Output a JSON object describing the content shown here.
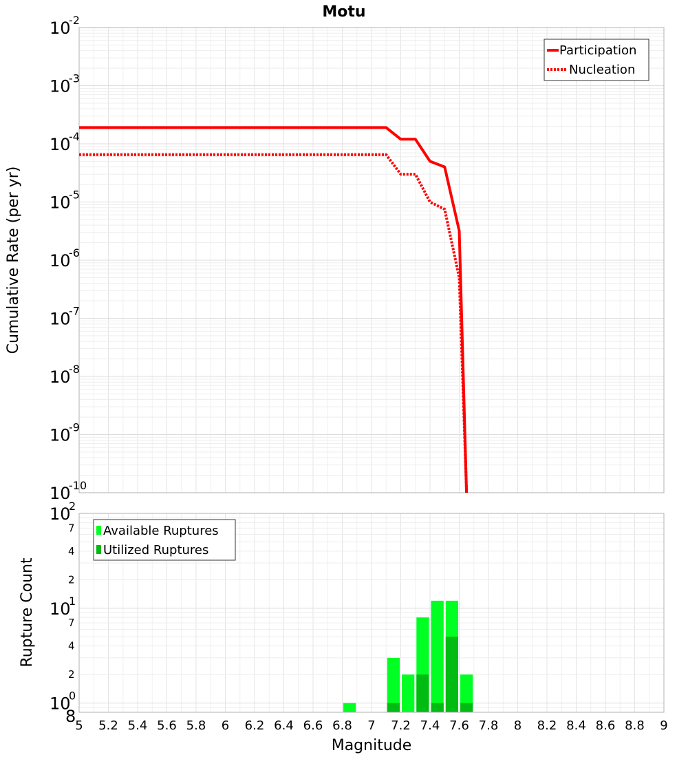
{
  "chart_data": [
    {
      "type": "line",
      "title": "Motu",
      "xlabel": "Magnitude",
      "ylabel": "Cumulative Rate (per yr)",
      "xlim": [
        5,
        9
      ],
      "ylim": [
        1e-10,
        0.01
      ],
      "yscale": "log",
      "xticks": [
        "5",
        "5.2",
        "5.4",
        "5.6",
        "5.8",
        "6",
        "6.2",
        "6.4",
        "6.6",
        "6.8",
        "7",
        "7.2",
        "7.4",
        "7.6",
        "7.8",
        "8",
        "8.2",
        "8.4",
        "8.6",
        "8.8",
        "9"
      ],
      "ytick_labels": [
        {
          "base": "10",
          "exp": "-2",
          "value": 0.01
        },
        {
          "base": "10",
          "exp": "-3",
          "value": 0.001
        },
        {
          "base": "10",
          "exp": "-4",
          "value": 0.0001
        },
        {
          "base": "10",
          "exp": "-5",
          "value": 1e-05
        },
        {
          "base": "10",
          "exp": "-6",
          "value": 1e-06
        },
        {
          "base": "10",
          "exp": "-7",
          "value": 1e-07
        },
        {
          "base": "10",
          "exp": "-8",
          "value": 1e-08
        },
        {
          "base": "10",
          "exp": "-9",
          "value": 1e-09
        },
        {
          "base": "10",
          "exp": "-10",
          "value": 1e-10
        }
      ],
      "legend": "top-right",
      "series": [
        {
          "name": "Participation",
          "color": "#ff0000",
          "style": "solid",
          "x": [
            5.0,
            7.1,
            7.2,
            7.3,
            7.4,
            7.5,
            7.6,
            7.65
          ],
          "y": [
            0.00019,
            0.00019,
            0.00012,
            0.00012,
            5e-05,
            4e-05,
            3.2e-06,
            1e-10
          ]
        },
        {
          "name": "Nucleation",
          "color": "#ff0000",
          "style": "dotted",
          "x": [
            5.0,
            7.1,
            7.2,
            7.3,
            7.4,
            7.5,
            7.6,
            7.65
          ],
          "y": [
            6.5e-05,
            6.5e-05,
            3e-05,
            3e-05,
            1e-05,
            7.5e-06,
            5e-07,
            1e-10
          ]
        }
      ]
    },
    {
      "type": "bar",
      "xlabel": "Magnitude",
      "ylabel": "Rupture Count",
      "xlim": [
        5,
        9
      ],
      "ylim": [
        0.8,
        100
      ],
      "yscale": "log",
      "major_ticks": [
        {
          "base": "10",
          "exp": "2",
          "value": 100
        },
        {
          "base": "10",
          "exp": "1",
          "value": 10
        },
        {
          "base": "10",
          "exp": "0",
          "value": 1
        }
      ],
      "minor_ticks": [
        {
          "label": "7",
          "value": 70
        },
        {
          "label": "4",
          "value": 40
        },
        {
          "label": "2",
          "value": 20
        },
        {
          "label": "7",
          "value": 7
        },
        {
          "label": "4",
          "value": 4
        },
        {
          "label": "2",
          "value": 2
        },
        {
          "label": "8",
          "value": 0.8
        }
      ],
      "legend": "top-left",
      "bin_width": 0.1,
      "series": [
        {
          "name": "Available Ruptures",
          "color": "#00ff22",
          "x": [
            6.85,
            7.15,
            7.25,
            7.35,
            7.45,
            7.55,
            7.65
          ],
          "values": [
            1,
            3,
            2,
            8,
            12,
            12,
            2
          ]
        },
        {
          "name": "Utilized Ruptures",
          "color": "#00bb11",
          "x": [
            7.15,
            7.25,
            7.35,
            7.45,
            7.55,
            7.65
          ],
          "values": [
            1,
            0,
            2,
            1,
            5,
            1
          ]
        }
      ]
    }
  ]
}
